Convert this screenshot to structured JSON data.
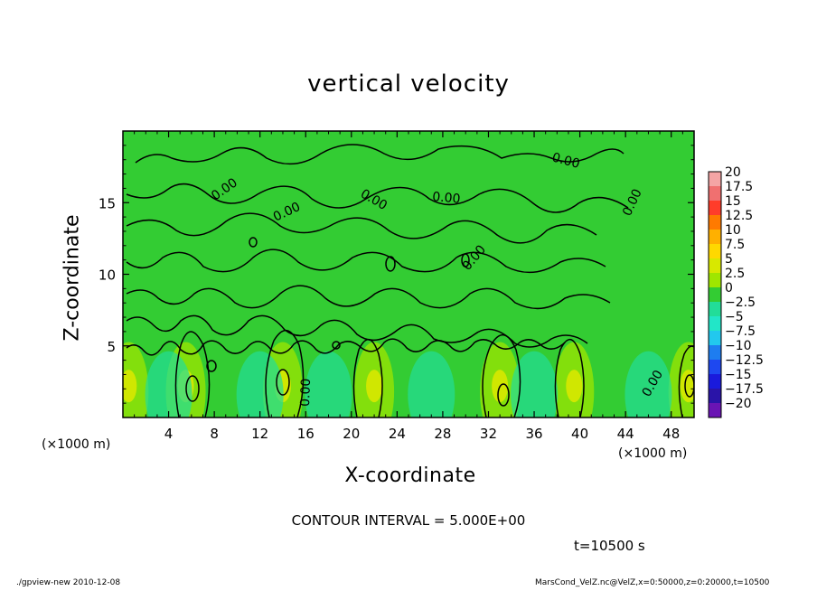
{
  "chart_data": {
    "type": "heatmap",
    "title": "vertical velocity",
    "xlabel": "X-coordinate",
    "ylabel": "Z-coordinate",
    "xunit_left": "(×1000 m)",
    "xunit_right": "(×1000 m)",
    "xlim": [
      0,
      50
    ],
    "ylim": [
      0,
      20
    ],
    "xticks": [
      4,
      8,
      12,
      16,
      20,
      24,
      28,
      32,
      36,
      40,
      44,
      48
    ],
    "yticks": [
      5,
      10,
      15
    ],
    "contour_label": "0.00",
    "contour_interval_text": "CONTOUR INTERVAL = 5.000E+00",
    "time_text": "t=10500 s",
    "colorbar": {
      "levels": [
        "20",
        "17.5",
        "15",
        "12.5",
        "10",
        "7.5",
        "5",
        "2.5",
        "0",
        "−2.5",
        "−5",
        "−7.5",
        "−10",
        "−12.5",
        "−15",
        "−17.5",
        "−20"
      ],
      "colors": [
        "#f4a5a5",
        "#f07070",
        "#ff3c2a",
        "#ff7a00",
        "#ffb000",
        "#ffd800",
        "#d8e800",
        "#9fe600",
        "#33cc33",
        "#22dd99",
        "#22e6c8",
        "#22c8ee",
        "#1e7df0",
        "#1e48f0",
        "#1a1adc",
        "#2a14a8",
        "#6a14b4"
      ]
    },
    "updraft_columns_x": [
      0.5,
      5.5,
      14,
      22,
      33,
      39.5,
      49.5
    ],
    "downdraft_columns_x": [
      4,
      12,
      18,
      27,
      36,
      46
    ]
  },
  "footer": {
    "left": "./gpview-new   2010-12-08",
    "right": "MarsCond_VelZ.nc@VelZ,x=0:50000,z=0:20000,t=10500"
  }
}
